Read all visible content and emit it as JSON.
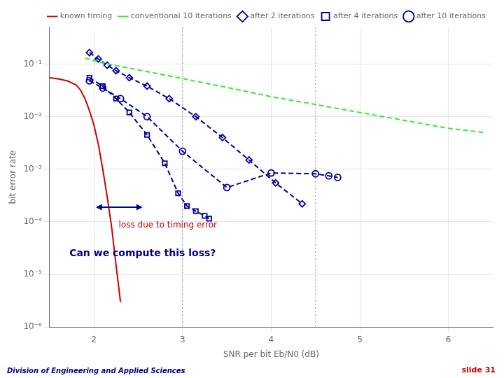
{
  "chart_data": {
    "type": "line",
    "xlabel": "SNR per bit Eb/N0 (dB)",
    "ylabel": "bit error rate",
    "log": "y",
    "grid": true,
    "legend": "upper right",
    "xlim": [
      1.5,
      6.5
    ],
    "ylim": [
      1e-06,
      0.5
    ],
    "xticks": [
      2,
      3,
      4,
      5,
      6
    ],
    "yticks": [
      {
        "value": 1e-06,
        "label": "10⁻⁶"
      },
      {
        "value": 1e-05,
        "label": "10⁻⁵"
      },
      {
        "value": 0.0001,
        "label": "10⁻⁴"
      },
      {
        "value": 0.001,
        "label": "10⁻³"
      },
      {
        "value": 0.01,
        "label": "10⁻²"
      },
      {
        "value": 0.1,
        "label": "10⁻¹"
      }
    ],
    "series": [
      {
        "name": "known timing",
        "color": "#cc0000",
        "line_style": "solid",
        "marker": "none",
        "x": [
          1.5,
          1.6,
          1.7,
          1.8,
          1.85,
          1.9,
          1.95,
          2.0,
          2.05,
          2.1,
          2.15,
          2.2,
          2.25,
          2.3
        ],
        "values": [
          0.055,
          0.052,
          0.048,
          0.04,
          0.032,
          0.022,
          0.013,
          0.007,
          0.003,
          0.001,
          0.0003,
          8e-05,
          1.5e-05,
          3e-06
        ]
      },
      {
        "name": "conventional 10 iterations",
        "color": "#33ee33",
        "line_style": "dashed",
        "marker": "none",
        "x": [
          1.9,
          2.1,
          2.3,
          2.6,
          3.0,
          3.5,
          4.0,
          4.5,
          5.0,
          5.5,
          6.0,
          6.4
        ],
        "values": [
          0.13,
          0.105,
          0.09,
          0.072,
          0.053,
          0.036,
          0.024,
          0.017,
          0.012,
          0.0085,
          0.006,
          0.005
        ]
      },
      {
        "name": "after 2 iterations",
        "color": "#000099",
        "line_style": "dashed",
        "marker": "diamond",
        "x": [
          1.95,
          2.05,
          2.15,
          2.25,
          2.4,
          2.6,
          2.85,
          3.15,
          3.45,
          3.75,
          4.05,
          4.35
        ],
        "values": [
          0.165,
          0.125,
          0.095,
          0.075,
          0.055,
          0.038,
          0.022,
          0.01,
          0.004,
          0.0015,
          0.00055,
          0.00022
        ]
      },
      {
        "name": "after 4 iterations",
        "color": "#000099",
        "line_style": "dashed",
        "marker": "square",
        "x": [
          1.95,
          2.1,
          2.25,
          2.4,
          2.6,
          2.8,
          2.95,
          3.05,
          3.15,
          3.25,
          3.3
        ],
        "values": [
          0.055,
          0.038,
          0.022,
          0.012,
          0.0045,
          0.0013,
          0.00035,
          0.0002,
          0.00016,
          0.00013,
          0.000115
        ]
      },
      {
        "name": "after 10 iterations",
        "color": "#000099",
        "line_style": "dashed",
        "marker": "circle",
        "x": [
          1.95,
          2.1,
          2.3,
          2.6,
          3.0,
          3.5,
          4.0,
          4.5,
          4.65,
          4.75
        ],
        "values": [
          0.048,
          0.035,
          0.022,
          0.01,
          0.0022,
          0.00045,
          0.00085,
          0.00082,
          0.00075,
          0.0007
        ]
      }
    ],
    "vlines": [
      3.0,
      4.5
    ],
    "arrows": [
      {
        "x": [
          2.02,
          2.55
        ],
        "y": 0.00019,
        "color": "#000099"
      }
    ],
    "annotations": [
      {
        "text": "loss due to timing error",
        "x": 2.28,
        "y": 8.5e-05,
        "color": "#cc0000"
      },
      {
        "text": "Can we compute this loss?",
        "x": 2.55,
        "y": 2.5e-05,
        "color": "#000080"
      }
    ],
    "footer_texts": [
      {
        "text": "slide 31",
        "color": "#cc0000"
      },
      {
        "text": "Division of Engineering and Applied Sciences",
        "color": "#000080"
      }
    ]
  }
}
